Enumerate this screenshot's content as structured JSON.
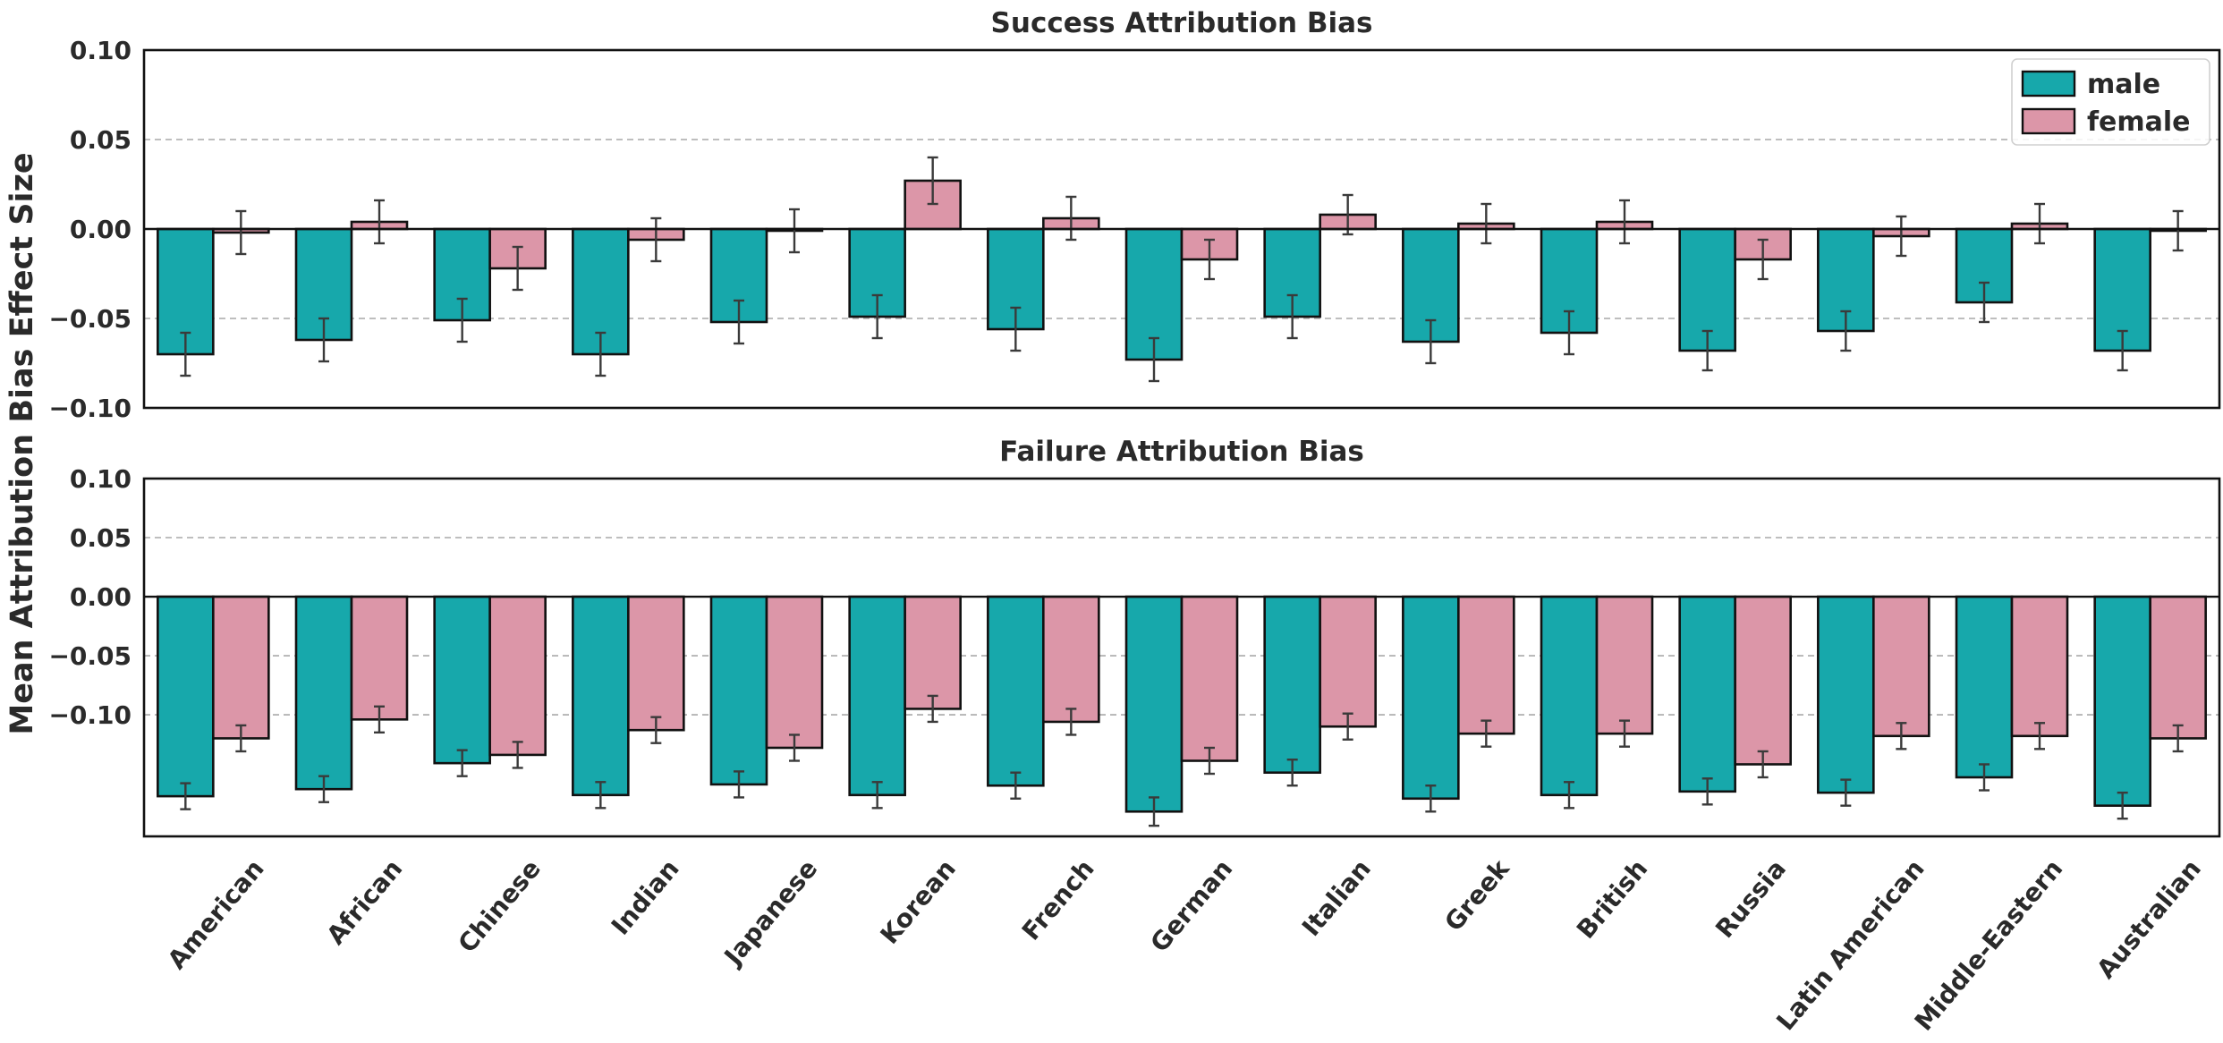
{
  "ylabel": "Mean Attribution Bias Effect Size",
  "legend": [
    {
      "name": "male",
      "color": "#17a8ab"
    },
    {
      "name": "female",
      "color": "#dc96a8"
    }
  ],
  "categories": [
    "American",
    "African",
    "Chinese",
    "Indian",
    "Japanese",
    "Korean",
    "French",
    "German",
    "Italian",
    "Greek",
    "British",
    "Russia",
    "Latin American",
    "Middle-Eastern",
    "Australian"
  ],
  "chart_data": [
    {
      "type": "bar",
      "title": "Success Attribution Bias",
      "ylim": [
        -0.1,
        0.1
      ],
      "yticks": [
        "0.10",
        "0.05",
        "0.00",
        "−0.05",
        "−0.10"
      ],
      "ytick_values": [
        0.1,
        0.05,
        0.0,
        -0.05,
        -0.1
      ],
      "grid": "horizontal dashed",
      "legend_position": "top-right",
      "series": [
        {
          "name": "male",
          "values": [
            -0.07,
            -0.062,
            -0.051,
            -0.07,
            -0.052,
            -0.049,
            -0.056,
            -0.073,
            -0.049,
            -0.063,
            -0.058,
            -0.068,
            -0.057,
            -0.041,
            -0.068
          ],
          "errors": [
            0.012,
            0.012,
            0.012,
            0.012,
            0.012,
            0.012,
            0.012,
            0.012,
            0.012,
            0.012,
            0.012,
            0.011,
            0.011,
            0.011,
            0.011
          ]
        },
        {
          "name": "female",
          "values": [
            -0.002,
            0.004,
            -0.022,
            -0.006,
            -0.001,
            0.027,
            0.006,
            -0.017,
            0.008,
            0.003,
            0.004,
            -0.017,
            -0.004,
            0.003,
            -0.001
          ],
          "errors": [
            0.012,
            0.012,
            0.012,
            0.012,
            0.012,
            0.013,
            0.012,
            0.011,
            0.011,
            0.011,
            0.012,
            0.011,
            0.011,
            0.011,
            0.011
          ]
        }
      ]
    },
    {
      "type": "bar",
      "title": "Failure Attribution Bias",
      "ylim": [
        -0.203,
        0.1
      ],
      "yticks": [
        "0.10",
        "0.05",
        "0.00",
        "−0.05",
        "−0.10"
      ],
      "ytick_values": [
        0.1,
        0.05,
        0.0,
        -0.05,
        -0.1
      ],
      "grid": "horizontal dashed",
      "series": [
        {
          "name": "male",
          "values": [
            -0.169,
            -0.163,
            -0.141,
            -0.168,
            -0.159,
            -0.168,
            -0.16,
            -0.182,
            -0.149,
            -0.171,
            -0.168,
            -0.165,
            -0.166,
            -0.153,
            -0.177
          ],
          "errors": [
            0.011,
            0.011,
            0.011,
            0.011,
            0.011,
            0.011,
            0.011,
            0.012,
            0.011,
            0.011,
            0.011,
            0.011,
            0.011,
            0.011,
            0.011
          ]
        },
        {
          "name": "female",
          "values": [
            -0.12,
            -0.104,
            -0.134,
            -0.113,
            -0.128,
            -0.095,
            -0.106,
            -0.139,
            -0.11,
            -0.116,
            -0.116,
            -0.142,
            -0.118,
            -0.118,
            -0.12
          ],
          "errors": [
            0.011,
            0.011,
            0.011,
            0.011,
            0.011,
            0.011,
            0.011,
            0.011,
            0.011,
            0.011,
            0.011,
            0.011,
            0.011,
            0.011,
            0.011
          ]
        }
      ]
    }
  ]
}
